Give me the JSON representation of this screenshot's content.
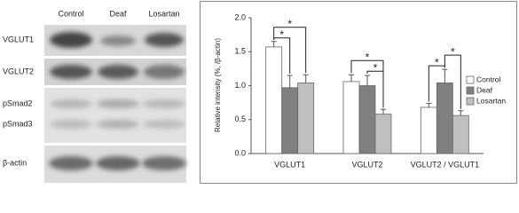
{
  "blot": {
    "columns": [
      "Control",
      "Deaf",
      "Losartan"
    ],
    "rows": [
      "VGLUT1",
      "VGLUT2",
      "pSmad2",
      "pSmad3",
      "β-actin"
    ]
  },
  "chart_data": {
    "type": "bar",
    "y_label": "Relative intensity (%, /β-actin)",
    "categories": [
      "VGLUT1",
      "VGLUT2",
      "VGLUT2 / VGLUT1"
    ],
    "series": [
      {
        "name": "Control",
        "color": "#ffffff",
        "values": [
          1.57,
          1.06,
          0.68
        ],
        "errors": [
          0.08,
          0.1,
          0.06
        ]
      },
      {
        "name": "Deaf",
        "color": "#808080",
        "values": [
          0.97,
          1.0,
          1.04
        ],
        "errors": [
          0.18,
          0.15,
          0.2
        ]
      },
      {
        "name": "Losartan",
        "color": "#c0c0c0",
        "values": [
          1.04,
          0.58,
          0.56
        ],
        "errors": [
          0.12,
          0.07,
          0.07
        ]
      }
    ],
    "ylim": [
      0,
      2
    ],
    "yticks": [
      {
        "value": 0,
        "label": "0.0"
      },
      {
        "value": 0.5,
        "label": "0.5"
      },
      {
        "value": 1,
        "label": "1.0"
      },
      {
        "value": 1.5,
        "label": "1.5"
      },
      {
        "value": 2,
        "label": "2.0"
      }
    ],
    "legend": "right",
    "significance": [
      {
        "category": "VGLUT1",
        "between": [
          "Control",
          "Deaf"
        ],
        "label": "*"
      },
      {
        "category": "VGLUT1",
        "between": [
          "Control",
          "Losartan"
        ],
        "label": "*"
      },
      {
        "category": "VGLUT2",
        "between": [
          "Deaf",
          "Losartan"
        ],
        "label": "*"
      },
      {
        "category": "VGLUT2",
        "between": [
          "Control",
          "Losartan"
        ],
        "label": "*"
      },
      {
        "category": "VGLUT2 / VGLUT1",
        "between": [
          "Control",
          "Deaf"
        ],
        "label": "*"
      },
      {
        "category": "VGLUT2 / VGLUT1",
        "between": [
          "Deaf",
          "Losartan"
        ],
        "label": "*"
      }
    ]
  }
}
